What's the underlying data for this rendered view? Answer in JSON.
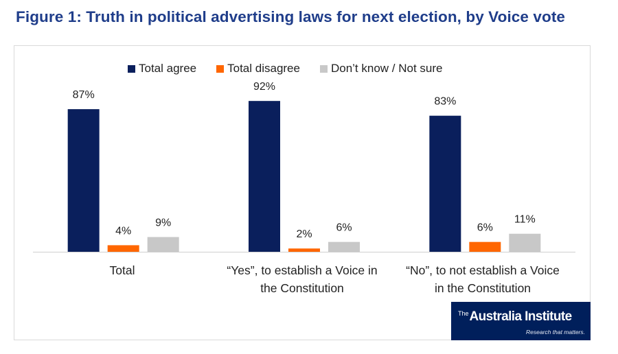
{
  "title": "Figure 1: Truth in political advertising laws for next election, by Voice vote",
  "logo": {
    "the": "The",
    "name": "Australia Institute",
    "tagline": "Research that matters."
  },
  "chart_data": {
    "type": "bar",
    "categories": [
      [
        "Total"
      ],
      [
        "“Yes”, to establish a Voice in",
        "the Constitution"
      ],
      [
        "“No”, to not establish a Voice",
        "in the Constitution"
      ]
    ],
    "series": [
      {
        "name": "Total agree",
        "color": "#0a1f5c",
        "values": [
          87,
          92,
          83
        ],
        "labels": [
          "87%",
          "92%",
          "83%"
        ]
      },
      {
        "name": "Total disagree",
        "color": "#ff6600",
        "values": [
          4,
          2,
          6
        ],
        "labels": [
          "4%",
          "2%",
          "6%"
        ]
      },
      {
        "name": "Don’t know / Not sure",
        "color": "#c8c8c8",
        "values": [
          9,
          6,
          11
        ],
        "labels": [
          "9%",
          "6%",
          "11%"
        ]
      }
    ],
    "ylim": [
      0,
      100
    ],
    "grid": false,
    "legend_position": "top"
  }
}
